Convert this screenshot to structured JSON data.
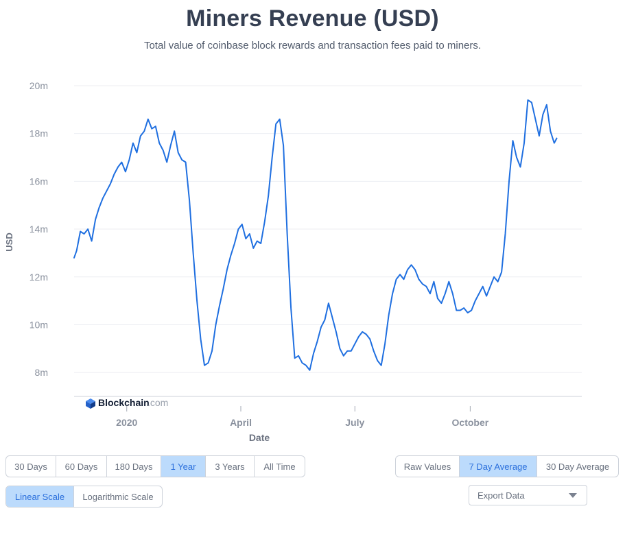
{
  "header": {
    "title": "Miners Revenue (USD)",
    "subtitle": "Total value of coinbase block rewards and transaction fees paid to miners."
  },
  "chart_data": {
    "type": "line",
    "xlabel": "Date",
    "ylabel": "USD",
    "ylim": [
      7,
      20.2
    ],
    "y_ticks": [
      {
        "value": 8,
        "label": "8m"
      },
      {
        "value": 10,
        "label": "10m"
      },
      {
        "value": 12,
        "label": "12m"
      },
      {
        "value": 14,
        "label": "14m"
      },
      {
        "value": 16,
        "label": "16m"
      },
      {
        "value": 18,
        "label": "18m"
      },
      {
        "value": 20,
        "label": "20m"
      }
    ],
    "x_ticks": [
      {
        "date": "2020-01-01",
        "label": "2020"
      },
      {
        "date": "2020-04-01",
        "label": "April"
      },
      {
        "date": "2020-07-01",
        "label": "July"
      },
      {
        "date": "2020-10-01",
        "label": "October"
      }
    ],
    "xlim": [
      "2019-11-20",
      "2020-12-29"
    ],
    "grid": true,
    "line_color": "#1f6fe0",
    "watermark": "Blockchain.com",
    "series": [
      {
        "name": "",
        "points": [
          [
            "2019-11-20",
            12.8
          ],
          [
            "2019-11-22",
            13.1
          ],
          [
            "2019-11-25",
            13.9
          ],
          [
            "2019-11-28",
            13.8
          ],
          [
            "2019-12-01",
            14.0
          ],
          [
            "2019-12-04",
            13.5
          ],
          [
            "2019-12-07",
            14.4
          ],
          [
            "2019-12-10",
            14.9
          ],
          [
            "2019-12-13",
            15.3
          ],
          [
            "2019-12-16",
            15.6
          ],
          [
            "2019-12-19",
            15.9
          ],
          [
            "2019-12-22",
            16.3
          ],
          [
            "2019-12-25",
            16.6
          ],
          [
            "2019-12-28",
            16.8
          ],
          [
            "2019-12-31",
            16.4
          ],
          [
            "2020-01-03",
            16.9
          ],
          [
            "2020-01-06",
            17.6
          ],
          [
            "2020-01-09",
            17.2
          ],
          [
            "2020-01-12",
            17.9
          ],
          [
            "2020-01-15",
            18.1
          ],
          [
            "2020-01-18",
            18.6
          ],
          [
            "2020-01-21",
            18.2
          ],
          [
            "2020-01-24",
            18.3
          ],
          [
            "2020-01-27",
            17.6
          ],
          [
            "2020-01-30",
            17.3
          ],
          [
            "2020-02-02",
            16.8
          ],
          [
            "2020-02-05",
            17.5
          ],
          [
            "2020-02-08",
            18.1
          ],
          [
            "2020-02-11",
            17.2
          ],
          [
            "2020-02-14",
            16.9
          ],
          [
            "2020-02-17",
            16.8
          ],
          [
            "2020-02-20",
            15.2
          ],
          [
            "2020-02-23",
            13.0
          ],
          [
            "2020-02-26",
            11.0
          ],
          [
            "2020-02-29",
            9.4
          ],
          [
            "2020-03-03",
            8.3
          ],
          [
            "2020-03-06",
            8.4
          ],
          [
            "2020-03-09",
            8.9
          ],
          [
            "2020-03-12",
            10.0
          ],
          [
            "2020-03-15",
            10.8
          ],
          [
            "2020-03-18",
            11.5
          ],
          [
            "2020-03-21",
            12.3
          ],
          [
            "2020-03-24",
            12.9
          ],
          [
            "2020-03-27",
            13.4
          ],
          [
            "2020-03-30",
            14.0
          ],
          [
            "2020-04-02",
            14.2
          ],
          [
            "2020-04-05",
            13.6
          ],
          [
            "2020-04-08",
            13.8
          ],
          [
            "2020-04-11",
            13.2
          ],
          [
            "2020-04-14",
            13.5
          ],
          [
            "2020-04-17",
            13.4
          ],
          [
            "2020-04-20",
            14.3
          ],
          [
            "2020-04-23",
            15.4
          ],
          [
            "2020-04-26",
            17.0
          ],
          [
            "2020-04-29",
            18.4
          ],
          [
            "2020-05-02",
            18.6
          ],
          [
            "2020-05-05",
            17.5
          ],
          [
            "2020-05-08",
            13.8
          ],
          [
            "2020-05-11",
            10.7
          ],
          [
            "2020-05-14",
            8.6
          ],
          [
            "2020-05-17",
            8.7
          ],
          [
            "2020-05-20",
            8.4
          ],
          [
            "2020-05-23",
            8.3
          ],
          [
            "2020-05-26",
            8.1
          ],
          [
            "2020-05-29",
            8.8
          ],
          [
            "2020-06-01",
            9.3
          ],
          [
            "2020-06-04",
            9.9
          ],
          [
            "2020-06-07",
            10.2
          ],
          [
            "2020-06-10",
            10.9
          ],
          [
            "2020-06-13",
            10.3
          ],
          [
            "2020-06-16",
            9.7
          ],
          [
            "2020-06-19",
            9.0
          ],
          [
            "2020-06-22",
            8.7
          ],
          [
            "2020-06-25",
            8.9
          ],
          [
            "2020-06-28",
            8.9
          ],
          [
            "2020-07-01",
            9.2
          ],
          [
            "2020-07-04",
            9.5
          ],
          [
            "2020-07-07",
            9.7
          ],
          [
            "2020-07-10",
            9.6
          ],
          [
            "2020-07-13",
            9.4
          ],
          [
            "2020-07-16",
            8.9
          ],
          [
            "2020-07-19",
            8.5
          ],
          [
            "2020-07-22",
            8.3
          ],
          [
            "2020-07-25",
            9.2
          ],
          [
            "2020-07-28",
            10.4
          ],
          [
            "2020-07-31",
            11.3
          ],
          [
            "2020-08-03",
            11.9
          ],
          [
            "2020-08-06",
            12.1
          ],
          [
            "2020-08-09",
            11.9
          ],
          [
            "2020-08-12",
            12.3
          ],
          [
            "2020-08-15",
            12.5
          ],
          [
            "2020-08-18",
            12.3
          ],
          [
            "2020-08-21",
            11.9
          ],
          [
            "2020-08-24",
            11.7
          ],
          [
            "2020-08-27",
            11.6
          ],
          [
            "2020-08-30",
            11.3
          ],
          [
            "2020-09-02",
            11.8
          ],
          [
            "2020-09-05",
            11.1
          ],
          [
            "2020-09-08",
            10.9
          ],
          [
            "2020-09-11",
            11.3
          ],
          [
            "2020-09-14",
            11.8
          ],
          [
            "2020-09-17",
            11.3
          ],
          [
            "2020-09-20",
            10.6
          ],
          [
            "2020-09-23",
            10.6
          ],
          [
            "2020-09-26",
            10.7
          ],
          [
            "2020-09-29",
            10.5
          ],
          [
            "2020-10-02",
            10.6
          ],
          [
            "2020-10-05",
            11.0
          ],
          [
            "2020-10-08",
            11.3
          ],
          [
            "2020-10-11",
            11.6
          ],
          [
            "2020-10-14",
            11.2
          ],
          [
            "2020-10-17",
            11.6
          ],
          [
            "2020-10-20",
            12.0
          ],
          [
            "2020-10-23",
            11.8
          ],
          [
            "2020-10-26",
            12.2
          ],
          [
            "2020-10-29",
            13.8
          ],
          [
            "2020-11-01",
            16.0
          ],
          [
            "2020-11-04",
            17.7
          ],
          [
            "2020-11-07",
            17.0
          ],
          [
            "2020-11-10",
            16.6
          ],
          [
            "2020-11-13",
            17.6
          ],
          [
            "2020-11-16",
            19.4
          ],
          [
            "2020-11-19",
            19.3
          ],
          [
            "2020-11-22",
            18.6
          ],
          [
            "2020-11-25",
            17.9
          ],
          [
            "2020-11-28",
            18.8
          ],
          [
            "2020-12-01",
            19.2
          ],
          [
            "2020-12-04",
            18.1
          ],
          [
            "2020-12-07",
            17.6
          ],
          [
            "2020-12-09",
            17.8
          ]
        ]
      }
    ]
  },
  "controls": {
    "range_buttons": [
      {
        "label": "30 Days",
        "active": false
      },
      {
        "label": "60 Days",
        "active": false
      },
      {
        "label": "180 Days",
        "active": false
      },
      {
        "label": "1 Year",
        "active": true
      },
      {
        "label": "3 Years",
        "active": false
      },
      {
        "label": "All Time",
        "active": false
      }
    ],
    "average_buttons": [
      {
        "label": "Raw Values",
        "active": false
      },
      {
        "label": "7 Day Average",
        "active": true
      },
      {
        "label": "30 Day Average",
        "active": false
      }
    ],
    "scale_buttons": [
      {
        "label": "Linear Scale",
        "active": true
      },
      {
        "label": "Logarithmic Scale",
        "active": false
      }
    ],
    "export_label": "Export Data"
  }
}
